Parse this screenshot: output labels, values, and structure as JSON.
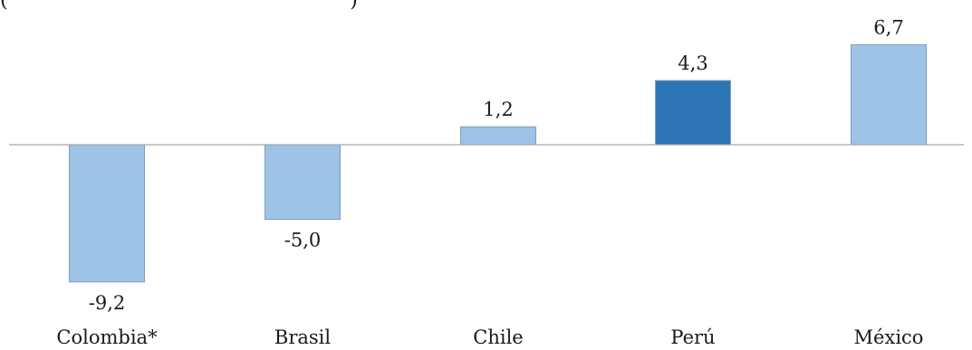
{
  "chart_data": {
    "type": "bar",
    "title": "",
    "xlabel": "",
    "ylabel": "",
    "categories": [
      "Colombia*",
      "Brasil",
      "Chile",
      "Perú",
      "México"
    ],
    "values": [
      -9.2,
      -5.0,
      1.2,
      4.3,
      6.7
    ],
    "value_labels": [
      "-9,2",
      "-5,0",
      "1,2",
      "4,3",
      "6,7"
    ],
    "ylim": [
      -9.2,
      6.7
    ],
    "grid": false,
    "legend": "none",
    "colors": {
      "default_bar": "#9DC3E6",
      "highlight_bar": "#2E75B6",
      "bar_border": "#7F9DB9",
      "axis": "#A6A6A6",
      "text": "#1a1a1a"
    },
    "highlight_category": "Perú"
  },
  "clipped_header": "(                                                      )"
}
